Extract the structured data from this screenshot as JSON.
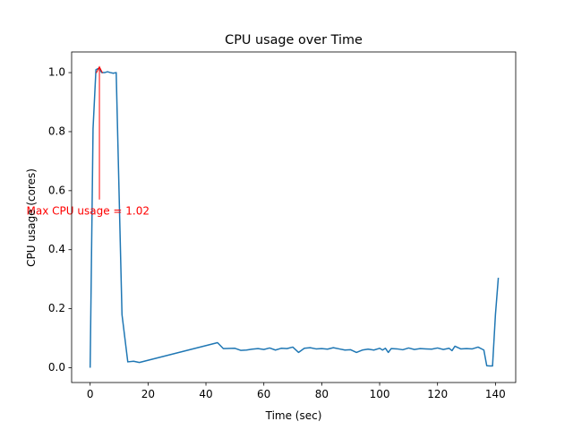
{
  "chart_data": {
    "type": "line",
    "title": "CPU usage over Time",
    "xlabel": "Time (sec)",
    "ylabel": "CPU usage (cores)",
    "xlim": [
      -6.4,
      147.0
    ],
    "ylim": [
      -0.05,
      1.07
    ],
    "xticks": [
      0,
      20,
      40,
      60,
      80,
      100,
      120,
      140
    ],
    "yticks": [
      0.0,
      0.2,
      0.4,
      0.6,
      0.8,
      1.0
    ],
    "ytick_labels": [
      "0.0",
      "0.2",
      "0.4",
      "0.6",
      "0.8",
      "1.0"
    ],
    "grid": false,
    "series": [
      {
        "color": "#1f77b4",
        "x": [
          0,
          1,
          2,
          3,
          4,
          5,
          6,
          7,
          8,
          9,
          11,
          13,
          15,
          17,
          44,
          46,
          50,
          52,
          54,
          56,
          58,
          60,
          62,
          64,
          66,
          68,
          70,
          72,
          74,
          76,
          78,
          80,
          82,
          84,
          86,
          88,
          90,
          92,
          94,
          96,
          98,
          100,
          101,
          102,
          103,
          104,
          106,
          108,
          110,
          112,
          114,
          116,
          118,
          120,
          122,
          124,
          125,
          126,
          128,
          130,
          132,
          134,
          136,
          137,
          138,
          139,
          140,
          141
        ],
        "y": [
          0.0,
          0.81,
          1.01,
          1.015,
          1.0,
          1.0,
          1.003,
          1.0,
          0.998,
          1.0,
          0.18,
          0.02,
          0.022,
          0.018,
          0.085,
          0.065,
          0.066,
          0.059,
          0.06,
          0.063,
          0.065,
          0.062,
          0.067,
          0.06,
          0.066,
          0.065,
          0.07,
          0.052,
          0.066,
          0.068,
          0.064,
          0.065,
          0.063,
          0.068,
          0.064,
          0.06,
          0.061,
          0.052,
          0.06,
          0.063,
          0.06,
          0.066,
          0.06,
          0.066,
          0.052,
          0.065,
          0.064,
          0.061,
          0.067,
          0.062,
          0.065,
          0.064,
          0.063,
          0.067,
          0.062,
          0.066,
          0.058,
          0.073,
          0.064,
          0.065,
          0.064,
          0.07,
          0.06,
          0.007,
          0.006,
          0.006,
          0.18,
          0.305
        ]
      }
    ],
    "annotation": {
      "text": "Max CPU usage = 1.02",
      "color": "#ff0000",
      "arrow_from": [
        3.2,
        0.57
      ],
      "arrow_to": [
        3.2,
        1.02
      ],
      "text_at": [
        -22,
        0.53
      ]
    }
  }
}
